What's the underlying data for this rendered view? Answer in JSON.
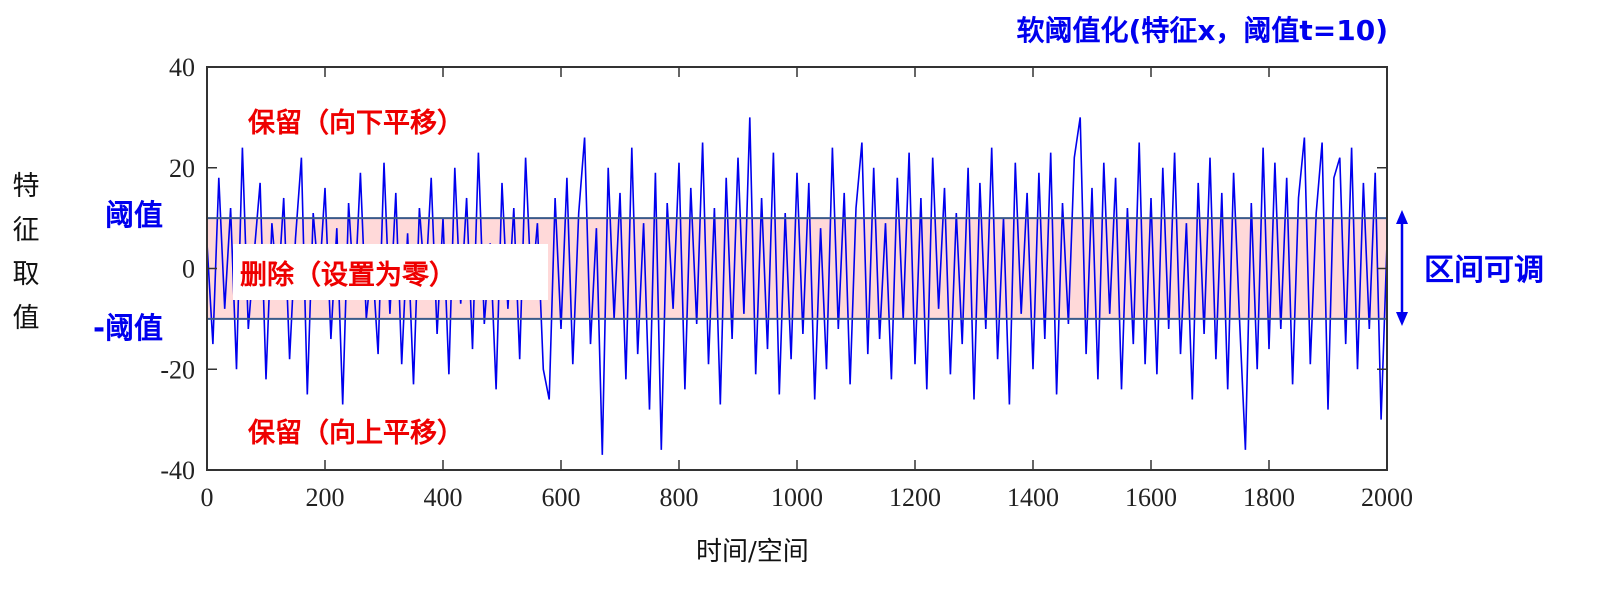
{
  "chart_data": {
    "type": "line",
    "title": "软阈值化(特征x，阈值t=10)",
    "xlabel": "时间/空间",
    "ylabel": "特征取值",
    "xlim": [
      0,
      2000
    ],
    "ylim": [
      -40,
      40
    ],
    "xticks": [
      "0",
      "200",
      "400",
      "600",
      "800",
      "1000",
      "1200",
      "1400",
      "1600",
      "1800",
      "2000"
    ],
    "yticks": [
      "40",
      "20",
      "0",
      "-20",
      "-40"
    ],
    "threshold": 10,
    "colors": {
      "series": "#0000ee",
      "band": "#ffd9d9",
      "band_edge": "#3a5a8a",
      "annotation": "#ee0000",
      "label": "#0000ee"
    },
    "annotations": {
      "keep_top": "保留（向下平移）",
      "delete": "删除（设置为零）",
      "keep_bottom": "保留（向上平移）",
      "threshold_pos": "阈值",
      "threshold_neg": "-阈值",
      "adjustable": "区间可调"
    },
    "series": [
      {
        "name": "特征x",
        "x_step": 10,
        "values": [
          5,
          -15,
          18,
          -8,
          12,
          -20,
          24,
          -12,
          3,
          17,
          -22,
          9,
          -5,
          14,
          -18,
          6,
          22,
          -25,
          11,
          -3,
          16,
          -14,
          8,
          -27,
          13,
          -6,
          19,
          -10,
          2,
          -17,
          21,
          -9,
          15,
          -19,
          7,
          -23,
          12,
          -4,
          18,
          -13,
          10,
          -21,
          20,
          -7,
          14,
          -16,
          23,
          -11,
          5,
          -24,
          17,
          -8,
          12,
          -18,
          22,
          -5,
          9,
          -20,
          -26,
          14,
          -12,
          18,
          -19,
          11,
          26,
          -15,
          8,
          -37,
          20,
          -10,
          15,
          -22,
          24,
          -17,
          9,
          -28,
          19,
          -36,
          13,
          -8,
          21,
          -24,
          16,
          -11,
          25,
          -19,
          12,
          -27,
          18,
          -14,
          22,
          -9,
          30,
          -21,
          14,
          -16,
          23,
          -25,
          11,
          -18,
          19,
          -13,
          17,
          -26,
          8,
          -20,
          24,
          -12,
          15,
          -23,
          12,
          25,
          -17,
          20,
          -14,
          9,
          -22,
          18,
          -10,
          23,
          -19,
          14,
          -24,
          22,
          -8,
          16,
          -21,
          11,
          -15,
          20,
          -26,
          17,
          -12,
          24,
          -18,
          10,
          -27,
          21,
          -9,
          15,
          -20,
          19,
          -14,
          23,
          -25,
          13,
          -11,
          22,
          30,
          -17,
          16,
          -22,
          21,
          -9,
          18,
          -24,
          12,
          -15,
          25,
          -19,
          14,
          -21,
          20,
          -12,
          23,
          -17,
          9,
          -26,
          17,
          -13,
          22,
          -18,
          15,
          -24,
          19,
          -10,
          -36,
          13,
          -20,
          24,
          -16,
          21,
          -12,
          18,
          -23,
          14,
          26,
          -19,
          11,
          25,
          -28,
          18,
          22,
          -15,
          24,
          -20,
          17,
          -12,
          19,
          -30,
          5
        ]
      }
    ]
  }
}
